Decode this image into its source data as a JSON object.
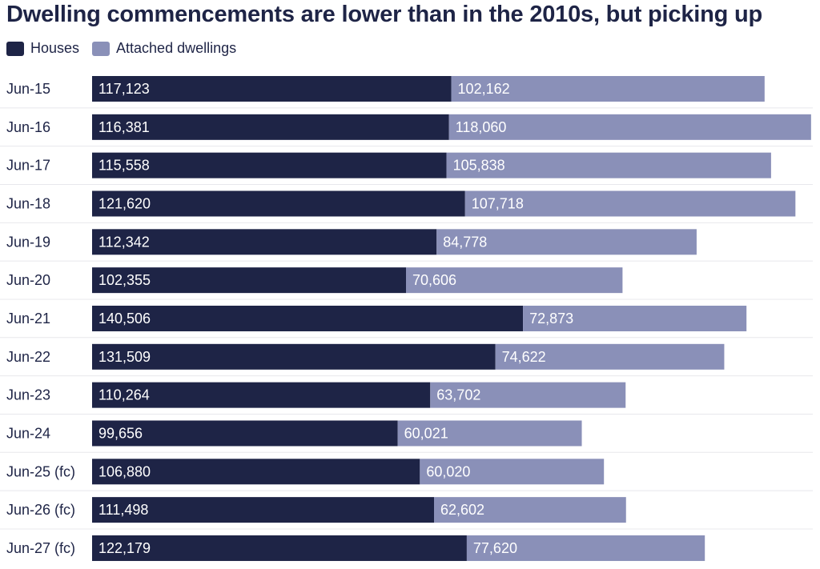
{
  "title": "Dwelling commencements are lower than in the 2010s, but picking up",
  "colors": {
    "houses": "#1e2446",
    "attached": "#8a90b8",
    "label_text": "#ffffff",
    "axis_text": "#1e2446"
  },
  "chart_data": {
    "type": "bar",
    "orientation": "horizontal",
    "stacked": true,
    "title": "Dwelling commencements are lower than in the 2010s, but picking up",
    "legend_position": "top-left",
    "grid": false,
    "xlim": [
      0,
      235000
    ],
    "categories": [
      "Jun-15",
      "Jun-16",
      "Jun-17",
      "Jun-18",
      "Jun-19",
      "Jun-20",
      "Jun-21",
      "Jun-22",
      "Jun-23",
      "Jun-24",
      "Jun-25 (fc)",
      "Jun-26 (fc)",
      "Jun-27 (fc)"
    ],
    "series": [
      {
        "name": "Houses",
        "values": [
          117123,
          116381,
          115558,
          121620,
          112342,
          102355,
          140506,
          131509,
          110264,
          99656,
          106880,
          111498,
          122179
        ],
        "labels": [
          "117,123",
          "116,381",
          "115,558",
          "121,620",
          "112,342",
          "102,355",
          "140,506",
          "131,509",
          "110,264",
          "99,656",
          "106,880",
          "111,498",
          "122,179"
        ]
      },
      {
        "name": "Attached dwellings",
        "values": [
          102162,
          118060,
          105838,
          107718,
          84778,
          70606,
          72873,
          74622,
          63702,
          60021,
          60020,
          62602,
          77620
        ],
        "labels": [
          "102,162",
          "118,060",
          "105,838",
          "107,718",
          "84,778",
          "70,606",
          "72,873",
          "74,622",
          "63,702",
          "60,021",
          "60,020",
          "62,602",
          "77,620"
        ]
      }
    ]
  }
}
